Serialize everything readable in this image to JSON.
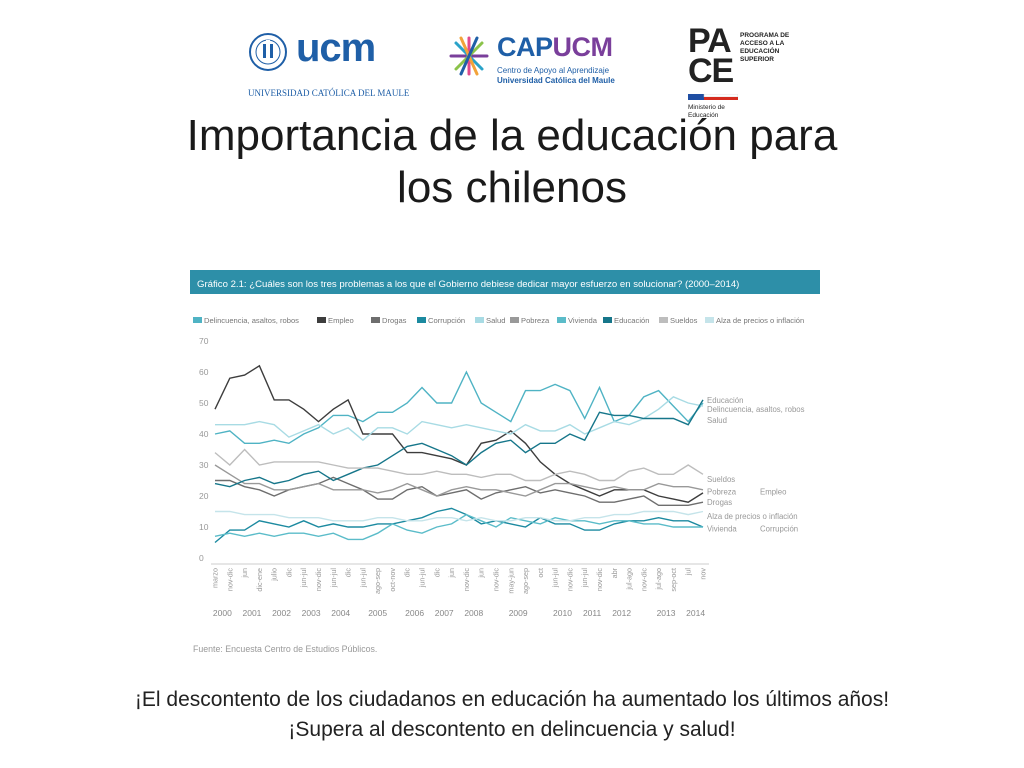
{
  "logos": {
    "ucm": {
      "name": "ucm",
      "subtitle": "UNIVERSIDAD CATÓLICA DEL MAULE"
    },
    "capucm": {
      "name_part1": "CAP",
      "name_part2": "UCM",
      "line1": "Centro de Apoyo al Aprendizaje",
      "line2": "Universidad Católica del Maule"
    },
    "pace": {
      "letters_top": "PA",
      "letters_bottom": "CE",
      "program": "PROGRAMA DE ACCESO A LA EDUCACIÓN SUPERIOR",
      "ministry": "Ministerio de Educación"
    }
  },
  "slide": {
    "title_line1": "Importancia de la educación para",
    "title_line2": "los chilenos",
    "caption_line1": "¡El descontento de los ciudadanos en educación ha aumentado los últimos años!",
    "caption_line2": "¡Supera al descontento en delincuencia y salud!"
  },
  "chart_data": {
    "type": "line",
    "title": "Gráfico 2.1: ¿Cuáles son los tres problemas a los que el Gobierno debiese dedicar mayor esfuerzo en solucionar? (2000–2014)",
    "source": "Fuente: Encuesta Centro de Estudios Públicos.",
    "ylim": [
      0,
      70
    ],
    "yticks": [
      0,
      10,
      20,
      30,
      40,
      50,
      60,
      70
    ],
    "grid": false,
    "legend_position": "top",
    "x": [
      "marzo",
      "nov-dic",
      "jun",
      "dic-ene",
      "julio",
      "dic",
      "jun-jul",
      "nov-dic",
      "jun-jul",
      "dic",
      "jun-jul",
      "ago-sep",
      "oct-nov",
      "dic",
      "jun-jul",
      "dic",
      "jun",
      "nov-dic",
      "jun",
      "nov-dic",
      "may-jun",
      "ago-sep",
      "oct",
      "jun-jul",
      "nov-dic",
      "jun-jul",
      "nov-dic",
      "abr",
      "jul-ago",
      "nov-dic",
      "jul-ago",
      "sep-oct",
      "jul",
      "nov"
    ],
    "year_labels": [
      {
        "label": "2000",
        "at": 0.5
      },
      {
        "label": "2001",
        "at": 2.5
      },
      {
        "label": "2002",
        "at": 4.5
      },
      {
        "label": "2003",
        "at": 6.5
      },
      {
        "label": "2004",
        "at": 8.5
      },
      {
        "label": "2005",
        "at": 11
      },
      {
        "label": "2006",
        "at": 13.5
      },
      {
        "label": "2007",
        "at": 15.5
      },
      {
        "label": "2008",
        "at": 17.5
      },
      {
        "label": "2009",
        "at": 20.5
      },
      {
        "label": "2010",
        "at": 23.5
      },
      {
        "label": "2011",
        "at": 25.5
      },
      {
        "label": "2012",
        "at": 27.5
      },
      {
        "label": "2013",
        "at": 30.5
      },
      {
        "label": "2014",
        "at": 32.5
      }
    ],
    "series": [
      {
        "name": "Delincuencia, asaltos, robos",
        "color": "#4fb3c4",
        "values": [
          40,
          41,
          37,
          37,
          38,
          37,
          40,
          42,
          46,
          46,
          44,
          47,
          47,
          50,
          55,
          50,
          50,
          60,
          50,
          47,
          44,
          54,
          54,
          56,
          54,
          45,
          55,
          44,
          46,
          52,
          54,
          49,
          44,
          50
        ]
      },
      {
        "name": "Empleo",
        "color": "#3d3d3d",
        "values": [
          48,
          58,
          59,
          62,
          51,
          51,
          48,
          44,
          48,
          51,
          40,
          40,
          40,
          34,
          34,
          33,
          32,
          30,
          37,
          38,
          41,
          37,
          31,
          27,
          24,
          22,
          20,
          22,
          22,
          22,
          20,
          19,
          18,
          21
        ]
      },
      {
        "name": "Drogas",
        "color": "#6e6e6e",
        "values": [
          25,
          25,
          23,
          22,
          20,
          22,
          23,
          24,
          26,
          24,
          22,
          19,
          19,
          22,
          23,
          20,
          21,
          22,
          19,
          21,
          22,
          23,
          21,
          22,
          21,
          20,
          18,
          18,
          19,
          20,
          17,
          17,
          17,
          18
        ]
      },
      {
        "name": "Corrupción",
        "color": "#1c8aa0",
        "values": [
          5,
          9,
          9,
          12,
          11,
          10,
          12,
          10,
          11,
          10,
          10,
          11,
          11,
          12,
          13,
          15,
          16,
          14,
          11,
          12,
          11,
          10,
          13,
          11,
          11,
          9,
          9,
          11,
          12,
          12,
          13,
          12,
          12,
          10
        ]
      },
      {
        "name": "Salud",
        "color": "#a8dbe4",
        "values": [
          43,
          43,
          43,
          44,
          43,
          39,
          41,
          43,
          40,
          42,
          38,
          42,
          42,
          40,
          44,
          43,
          42,
          43,
          42,
          41,
          40,
          43,
          41,
          41,
          43,
          40,
          42,
          44,
          43,
          45,
          48,
          52,
          50,
          49
        ]
      },
      {
        "name": "Pobreza",
        "color": "#999999",
        "values": [
          30,
          27,
          24,
          24,
          22,
          22,
          23,
          24,
          22,
          22,
          22,
          21,
          22,
          24,
          22,
          20,
          22,
          23,
          22,
          22,
          21,
          20,
          22,
          24,
          24,
          23,
          22,
          23,
          22,
          22,
          24,
          23,
          23,
          22
        ]
      },
      {
        "name": "Vivienda",
        "color": "#5bbcc9",
        "values": [
          7,
          8,
          7,
          8,
          7,
          8,
          8,
          7,
          8,
          6,
          6,
          8,
          11,
          9,
          8,
          10,
          11,
          14,
          12,
          10,
          13,
          12,
          11,
          13,
          12,
          12,
          11,
          12,
          12,
          11,
          11,
          10,
          10,
          10
        ]
      },
      {
        "name": "Educación",
        "color": "#16768a",
        "values": [
          24,
          23,
          25,
          26,
          24,
          25,
          27,
          28,
          25,
          27,
          29,
          30,
          33,
          36,
          37,
          35,
          33,
          30,
          34,
          37,
          38,
          34,
          37,
          37,
          40,
          38,
          47,
          46,
          46,
          45,
          45,
          45,
          43,
          51
        ]
      },
      {
        "name": "Sueldos",
        "color": "#bdbdbd",
        "values": [
          34,
          30,
          35,
          30,
          31,
          31,
          31,
          31,
          30,
          29,
          29,
          29,
          28,
          27,
          27,
          28,
          27,
          27,
          26,
          27,
          27,
          25,
          25,
          27,
          28,
          27,
          25,
          25,
          28,
          29,
          27,
          27,
          30,
          27
        ]
      },
      {
        "name": "Alza de precios o inflación",
        "color": "#c5e4ea",
        "values": [
          15,
          15,
          14,
          14,
          14,
          13,
          13,
          13,
          12,
          12,
          12,
          13,
          13,
          12,
          12,
          13,
          13,
          12,
          13,
          12,
          12,
          13,
          13,
          12,
          12,
          13,
          13,
          14,
          14,
          15,
          15,
          15,
          14,
          15
        ]
      }
    ],
    "right_labels": [
      {
        "text": "Educación",
        "y": 51
      },
      {
        "text": "Delincuencia, asaltos, robos",
        "y": 48
      },
      {
        "text": "Salud",
        "y": 44.5
      },
      {
        "text": "Sueldos",
        "y": 25.5
      },
      {
        "text": "Pobreza",
        "y": 21.5
      },
      {
        "text": "Empleo",
        "y": 21.5,
        "second": true
      },
      {
        "text": "Drogas",
        "y": 18
      },
      {
        "text": "Alza de precios o inflación",
        "y": 13.5
      },
      {
        "text": "Vivienda",
        "y": 9.5
      },
      {
        "text": "Corrupción",
        "y": 9.5,
        "second": true
      }
    ]
  }
}
